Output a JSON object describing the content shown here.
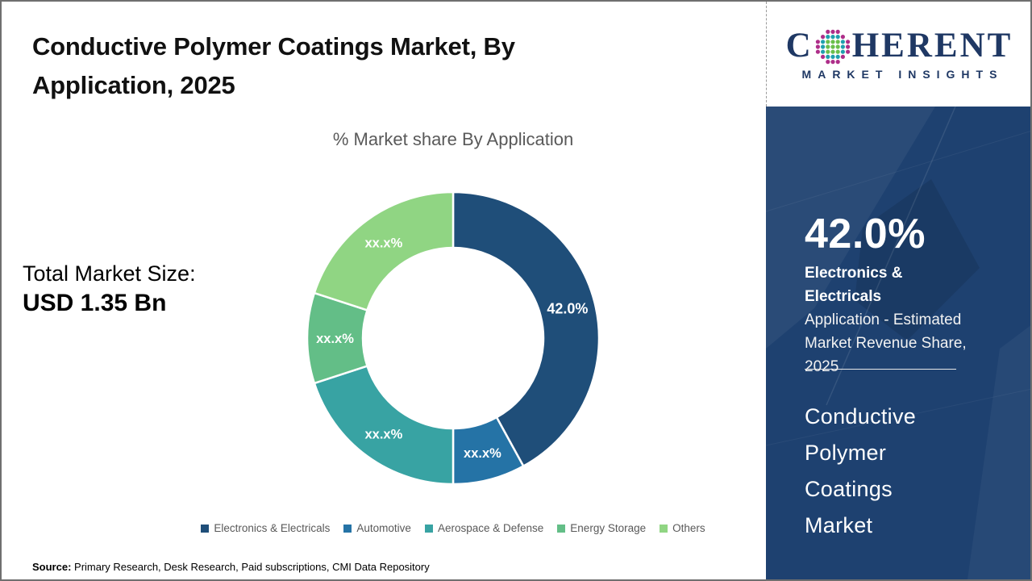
{
  "header": {
    "title": "Conductive Polymer Coatings Market, By Application, 2025"
  },
  "chart": {
    "subtitle": "% Market share By Application"
  },
  "total_market": {
    "label": "Total Market Size:",
    "value": "USD 1.35 Bn"
  },
  "chart_data": {
    "type": "pie",
    "donut": true,
    "title": "% Market share By Application",
    "categories": [
      "Electronics & Electricals",
      "Automotive",
      "Aerospace & Defense",
      "Energy Storage",
      "Others"
    ],
    "values": [
      42.0,
      8.0,
      20.0,
      10.0,
      20.0
    ],
    "labels": [
      "42.0%",
      "xx.x%",
      "xx.x%",
      "xx.x%",
      "xx.x%"
    ],
    "colors": [
      "#1f4e79",
      "#2573a6",
      "#38a3a3",
      "#63be87",
      "#90d583"
    ],
    "start_angle_deg": 0,
    "legend_position": "bottom"
  },
  "source": {
    "label": "Source:",
    "text": " Primary Research, Desk Research, Paid subscriptions, CMI Data Repository"
  },
  "sidebar": {
    "logo": {
      "part1": "C",
      "part2": "HERENT",
      "subtext": "MARKET INSIGHTS",
      "text_color": "#1f3864",
      "dot_colors": {
        "outer": "#ae2e89",
        "middle": "#1fa0ae",
        "inner": "#6abf4b"
      }
    },
    "stat": {
      "value": "42.0%",
      "highlight": "Electronics & Electricals",
      "description": "Application - Estimated Market Revenue Share, 2025"
    },
    "market_name": "Conductive Polymer Coatings Market",
    "panel_color": "#1e4170"
  }
}
